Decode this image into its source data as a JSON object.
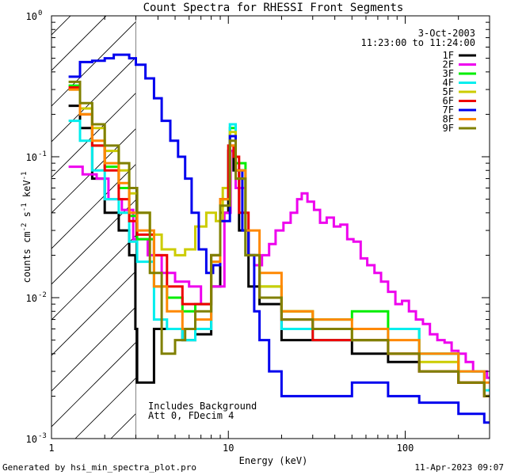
{
  "chart_data": {
    "type": "line",
    "title": "Count Spectra for RHESSI Front Segments",
    "xlabel": "Energy (keV)",
    "ylabel_parts": [
      "counts cm",
      "-2",
      " s",
      "-1",
      " keV",
      "-1"
    ],
    "x_scale": "log",
    "y_scale": "log",
    "xlim": [
      1,
      300
    ],
    "ylim": [
      0.001,
      1
    ],
    "x_ticks": [
      {
        "value": 1,
        "label": "1"
      },
      {
        "value": 10,
        "label": "10"
      },
      {
        "value": 100,
        "label": "100"
      }
    ],
    "y_ticks": [
      {
        "value": 1,
        "base": "10",
        "exp": "0"
      },
      {
        "value": 0.1,
        "base": "10",
        "exp": "-1"
      },
      {
        "value": 0.01,
        "base": "10",
        "exp": "-2"
      },
      {
        "value": 0.001,
        "base": "10",
        "exp": "-3"
      }
    ],
    "legend_position": "top-right",
    "date": "3-Oct-2003",
    "time_range": "11:23:00 to 11:24:00",
    "hatched_region_xmax": 3,
    "annotations": [
      "Includes Background",
      "Att 0, FDecim 4"
    ],
    "series": [
      {
        "name": "1F",
        "color": "#000000",
        "points": [
          [
            1.25,
            0.23
          ],
          [
            1.45,
            0.16
          ],
          [
            1.7,
            0.07
          ],
          [
            2.0,
            0.04
          ],
          [
            2.4,
            0.03
          ],
          [
            2.75,
            0.02
          ],
          [
            2.98,
            0.006
          ],
          [
            3.05,
            0.0025
          ],
          [
            3.8,
            0.006
          ],
          [
            4.5,
            0.006
          ],
          [
            5.5,
            0.005
          ],
          [
            6.5,
            0.0055
          ],
          [
            8.0,
            0.012
          ],
          [
            9.0,
            0.04
          ],
          [
            10.0,
            0.11
          ],
          [
            10.7,
            0.08
          ],
          [
            11.5,
            0.03
          ],
          [
            13,
            0.012
          ],
          [
            15,
            0.009
          ],
          [
            20,
            0.005
          ],
          [
            30,
            0.005
          ],
          [
            50,
            0.004
          ],
          [
            80,
            0.0035
          ],
          [
            120,
            0.003
          ],
          [
            200,
            0.0025
          ],
          [
            280,
            0.002
          ]
        ]
      },
      {
        "name": "2F",
        "color": "#ee00ee",
        "points": [
          [
            1.25,
            0.085
          ],
          [
            1.5,
            0.075
          ],
          [
            1.8,
            0.07
          ],
          [
            2.1,
            0.05
          ],
          [
            2.5,
            0.042
          ],
          [
            2.9,
            0.026
          ],
          [
            3.5,
            0.02
          ],
          [
            4.2,
            0.015
          ],
          [
            5.0,
            0.013
          ],
          [
            6.0,
            0.012
          ],
          [
            7.0,
            0.009
          ],
          [
            8.0,
            0.012
          ],
          [
            9.5,
            0.04
          ],
          [
            10.3,
            0.11
          ],
          [
            11,
            0.06
          ],
          [
            12.5,
            0.02
          ],
          [
            14,
            0.017
          ],
          [
            15.5,
            0.02
          ],
          [
            17,
            0.024
          ],
          [
            18.5,
            0.03
          ],
          [
            20.5,
            0.034
          ],
          [
            22.5,
            0.04
          ],
          [
            24.5,
            0.05
          ],
          [
            26,
            0.055
          ],
          [
            28,
            0.048
          ],
          [
            30.5,
            0.042
          ],
          [
            33,
            0.034
          ],
          [
            36,
            0.037
          ],
          [
            39.5,
            0.032
          ],
          [
            43,
            0.033
          ],
          [
            47,
            0.026
          ],
          [
            51,
            0.025
          ],
          [
            56,
            0.019
          ],
          [
            61,
            0.017
          ],
          [
            67,
            0.015
          ],
          [
            73,
            0.013
          ],
          [
            80,
            0.011
          ],
          [
            88,
            0.009
          ],
          [
            96,
            0.0095
          ],
          [
            105,
            0.008
          ],
          [
            115,
            0.007
          ],
          [
            126,
            0.0065
          ],
          [
            138,
            0.0055
          ],
          [
            152,
            0.005
          ],
          [
            167,
            0.0048
          ],
          [
            183,
            0.0042
          ],
          [
            200,
            0.004
          ],
          [
            220,
            0.0035
          ],
          [
            242,
            0.003
          ],
          [
            265,
            0.003
          ],
          [
            290,
            0.0027
          ]
        ]
      },
      {
        "name": "3F",
        "color": "#00ee00",
        "points": [
          [
            1.25,
            0.32
          ],
          [
            1.45,
            0.2
          ],
          [
            1.7,
            0.12
          ],
          [
            2.0,
            0.085
          ],
          [
            2.4,
            0.06
          ],
          [
            2.75,
            0.038
          ],
          [
            3.05,
            0.026
          ],
          [
            3.8,
            0.012
          ],
          [
            4.5,
            0.01
          ],
          [
            5.5,
            0.008
          ],
          [
            6.5,
            0.009
          ],
          [
            8.0,
            0.02
          ],
          [
            9.0,
            0.05
          ],
          [
            10.2,
            0.16
          ],
          [
            11,
            0.09
          ],
          [
            12.5,
            0.02
          ],
          [
            15,
            0.012
          ],
          [
            20,
            0.008
          ],
          [
            30,
            0.007
          ],
          [
            50,
            0.008
          ],
          [
            80,
            0.006
          ],
          [
            120,
            0.004
          ],
          [
            200,
            0.003
          ],
          [
            280,
            0.0022
          ]
        ]
      },
      {
        "name": "4F",
        "color": "#00eeee",
        "points": [
          [
            1.25,
            0.18
          ],
          [
            1.45,
            0.13
          ],
          [
            1.7,
            0.08
          ],
          [
            2.0,
            0.05
          ],
          [
            2.4,
            0.04
          ],
          [
            2.75,
            0.025
          ],
          [
            3.05,
            0.018
          ],
          [
            3.8,
            0.007
          ],
          [
            4.5,
            0.006
          ],
          [
            5.5,
            0.005
          ],
          [
            6.5,
            0.006
          ],
          [
            8.0,
            0.018
          ],
          [
            9.0,
            0.05
          ],
          [
            10.2,
            0.17
          ],
          [
            11,
            0.08
          ],
          [
            12.5,
            0.02
          ],
          [
            15,
            0.01
          ],
          [
            20,
            0.006
          ],
          [
            30,
            0.005
          ],
          [
            50,
            0.005
          ],
          [
            80,
            0.006
          ],
          [
            120,
            0.004
          ],
          [
            200,
            0.003
          ],
          [
            280,
            0.0022
          ]
        ]
      },
      {
        "name": "5F",
        "color": "#cccc00",
        "points": [
          [
            1.25,
            0.3
          ],
          [
            1.45,
            0.22
          ],
          [
            1.7,
            0.16
          ],
          [
            2.0,
            0.11
          ],
          [
            2.4,
            0.08
          ],
          [
            2.75,
            0.055
          ],
          [
            3.05,
            0.04
          ],
          [
            3.6,
            0.028
          ],
          [
            4.2,
            0.022
          ],
          [
            5.0,
            0.02
          ],
          [
            5.7,
            0.022
          ],
          [
            6.5,
            0.032
          ],
          [
            7.5,
            0.04
          ],
          [
            8.5,
            0.035
          ],
          [
            9.3,
            0.06
          ],
          [
            10.2,
            0.15
          ],
          [
            11,
            0.07
          ],
          [
            12.5,
            0.02
          ],
          [
            15,
            0.012
          ],
          [
            20,
            0.008
          ],
          [
            30,
            0.006
          ],
          [
            50,
            0.005
          ],
          [
            80,
            0.004
          ],
          [
            120,
            0.0035
          ],
          [
            200,
            0.0025
          ],
          [
            280,
            0.002
          ]
        ]
      },
      {
        "name": "6F",
        "color": "#ee0000",
        "points": [
          [
            1.25,
            0.31
          ],
          [
            1.45,
            0.2
          ],
          [
            1.7,
            0.12
          ],
          [
            2.0,
            0.08
          ],
          [
            2.4,
            0.05
          ],
          [
            2.75,
            0.035
          ],
          [
            3.05,
            0.028
          ],
          [
            3.8,
            0.02
          ],
          [
            4.5,
            0.012
          ],
          [
            5.5,
            0.009
          ],
          [
            6.5,
            0.009
          ],
          [
            8.0,
            0.02
          ],
          [
            9.0,
            0.05
          ],
          [
            10.0,
            0.12
          ],
          [
            10.7,
            0.1
          ],
          [
            11.5,
            0.04
          ],
          [
            13,
            0.02
          ],
          [
            15,
            0.01
          ],
          [
            20,
            0.007
          ],
          [
            30,
            0.005
          ],
          [
            50,
            0.005
          ],
          [
            80,
            0.004
          ],
          [
            120,
            0.003
          ],
          [
            200,
            0.0025
          ],
          [
            280,
            0.002
          ]
        ]
      },
      {
        "name": "7F",
        "color": "#0000ee",
        "points": [
          [
            1.25,
            0.37
          ],
          [
            1.45,
            0.47
          ],
          [
            1.7,
            0.48
          ],
          [
            2.0,
            0.5
          ],
          [
            2.25,
            0.53
          ],
          [
            2.5,
            0.53
          ],
          [
            2.75,
            0.5
          ],
          [
            3.0,
            0.45
          ],
          [
            3.4,
            0.36
          ],
          [
            3.8,
            0.26
          ],
          [
            4.2,
            0.18
          ],
          [
            4.7,
            0.13
          ],
          [
            5.2,
            0.1
          ],
          [
            5.7,
            0.07
          ],
          [
            6.2,
            0.04
          ],
          [
            6.8,
            0.022
          ],
          [
            7.5,
            0.015
          ],
          [
            8.2,
            0.017
          ],
          [
            9.0,
            0.035
          ],
          [
            10.2,
            0.14
          ],
          [
            11,
            0.08
          ],
          [
            12,
            0.03
          ],
          [
            13,
            0.02
          ],
          [
            14,
            0.008
          ],
          [
            15,
            0.005
          ],
          [
            17,
            0.003
          ],
          [
            20,
            0.002
          ],
          [
            30,
            0.002
          ],
          [
            50,
            0.0025
          ],
          [
            80,
            0.002
          ],
          [
            120,
            0.0018
          ],
          [
            200,
            0.0015
          ],
          [
            280,
            0.0013
          ]
        ]
      },
      {
        "name": "8F",
        "color": "#ff8800",
        "points": [
          [
            1.25,
            0.3
          ],
          [
            1.45,
            0.2
          ],
          [
            1.7,
            0.13
          ],
          [
            2.0,
            0.09
          ],
          [
            2.4,
            0.065
          ],
          [
            2.75,
            0.04
          ],
          [
            3.05,
            0.03
          ],
          [
            3.8,
            0.012
          ],
          [
            4.5,
            0.008
          ],
          [
            5.5,
            0.006
          ],
          [
            6.5,
            0.007
          ],
          [
            8.0,
            0.018
          ],
          [
            9.0,
            0.05
          ],
          [
            10.2,
            0.12
          ],
          [
            11,
            0.08
          ],
          [
            12.5,
            0.03
          ],
          [
            15,
            0.015
          ],
          [
            20,
            0.008
          ],
          [
            30,
            0.007
          ],
          [
            50,
            0.006
          ],
          [
            80,
            0.005
          ],
          [
            120,
            0.004
          ],
          [
            200,
            0.003
          ],
          [
            280,
            0.0025
          ]
        ]
      },
      {
        "name": "9F",
        "color": "#808000",
        "points": [
          [
            1.25,
            0.34
          ],
          [
            1.45,
            0.24
          ],
          [
            1.7,
            0.17
          ],
          [
            2.0,
            0.12
          ],
          [
            2.4,
            0.09
          ],
          [
            2.75,
            0.06
          ],
          [
            3.05,
            0.04
          ],
          [
            3.6,
            0.015
          ],
          [
            4.2,
            0.004
          ],
          [
            5.0,
            0.005
          ],
          [
            5.7,
            0.006
          ],
          [
            6.5,
            0.008
          ],
          [
            8.0,
            0.02
          ],
          [
            9.0,
            0.045
          ],
          [
            10.2,
            0.13
          ],
          [
            11,
            0.07
          ],
          [
            12.5,
            0.02
          ],
          [
            15,
            0.01
          ],
          [
            20,
            0.007
          ],
          [
            30,
            0.006
          ],
          [
            50,
            0.005
          ],
          [
            80,
            0.004
          ],
          [
            120,
            0.003
          ],
          [
            200,
            0.0025
          ],
          [
            280,
            0.002
          ]
        ]
      }
    ]
  },
  "footer": {
    "generated_by": "Generated by hsi_min_spectra_plot.pro",
    "timestamp": "11-Apr-2023 09:07"
  }
}
